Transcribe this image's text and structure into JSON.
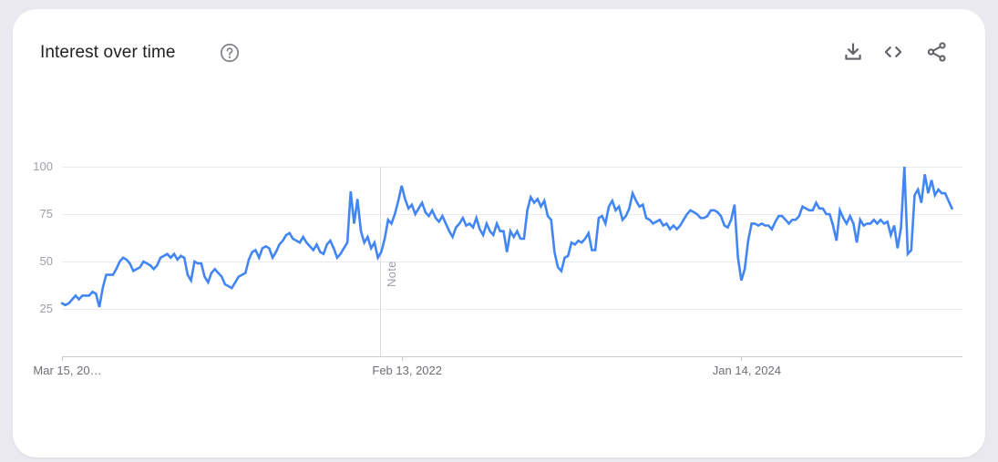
{
  "header": {
    "title": "Interest over time",
    "help_icon": "help-circle",
    "actions": [
      {
        "name": "download",
        "icon": "download-icon"
      },
      {
        "name": "embed",
        "icon": "embed-code-icon"
      },
      {
        "name": "share",
        "icon": "share-icon"
      }
    ]
  },
  "colors": {
    "line": "#4285f4",
    "grid": "#e8eaed",
    "axis": "#c9cbce",
    "icon": "#5f6368",
    "title_text": "#202124",
    "axis_label_text": "#9aa0a6",
    "card_background": "#ffffff",
    "page_background": "#eae9ef"
  },
  "chart_data": {
    "type": "line",
    "title": "Interest over time",
    "x_axis": {
      "tick_labels": [
        "Mar 15, 20…",
        "Feb 13, 2022",
        "Jan 14, 2024"
      ],
      "tick_weeks": [
        0,
        100,
        200
      ],
      "points_interval": "weekly"
    },
    "y_axis": {
      "tick_labels": [
        "100",
        "75",
        "50",
        "25"
      ],
      "tick_values": [
        100,
        75,
        50,
        25
      ],
      "range": [
        0,
        100
      ],
      "grid": true
    },
    "note_marker": {
      "label": "Note",
      "week": 93.6
    },
    "legend_position": "none",
    "series": [
      {
        "name": "interest",
        "color": "#4285f4",
        "values": [
          28,
          27,
          28,
          30,
          32,
          30,
          32,
          32,
          32,
          34,
          33,
          26,
          36,
          43,
          43,
          43,
          46,
          50,
          52,
          51,
          49,
          45,
          46,
          47,
          50,
          49,
          48,
          46,
          48,
          52,
          53,
          54,
          52,
          54,
          51,
          53,
          52,
          43,
          40,
          50,
          49,
          49,
          42,
          39,
          44,
          46,
          44,
          42,
          38,
          37,
          36,
          39,
          42,
          43,
          44,
          51,
          55,
          56,
          52,
          57,
          58,
          57,
          52,
          55,
          59,
          61,
          64,
          65,
          62,
          61,
          60,
          63,
          60,
          58,
          56,
          59,
          55,
          54,
          59,
          61,
          57,
          52,
          54,
          57,
          60,
          87,
          70,
          83,
          66,
          60,
          63,
          57,
          60,
          52,
          55,
          62,
          72,
          70,
          75,
          82,
          90,
          83,
          78,
          80,
          75,
          78,
          81,
          76,
          74,
          77,
          73,
          71,
          74,
          70,
          66,
          63,
          68,
          70,
          73,
          69,
          70,
          68,
          73,
          67,
          64,
          70,
          66,
          64,
          70,
          66,
          66,
          55,
          66,
          63,
          66,
          62,
          62,
          77,
          84,
          81,
          83,
          79,
          82,
          74,
          72,
          55,
          47,
          45,
          52,
          53,
          60,
          59,
          61,
          60,
          62,
          65,
          56,
          56,
          73,
          74,
          70,
          79,
          82,
          77,
          79,
          72,
          74,
          78,
          86,
          82,
          79,
          80,
          73,
          72,
          70,
          71,
          72,
          69,
          70,
          67,
          69,
          67,
          69,
          72,
          75,
          77,
          76,
          75,
          73,
          73,
          74,
          77,
          77,
          76,
          74,
          69,
          68,
          72,
          80,
          52,
          40,
          46,
          61,
          70,
          70,
          69,
          70,
          69,
          69,
          67,
          71,
          74,
          74,
          72,
          70,
          72,
          72,
          74,
          79,
          78,
          77,
          77,
          81,
          78,
          78,
          75,
          75,
          69,
          61,
          77,
          73,
          70,
          74,
          70,
          60,
          72,
          69,
          70,
          70,
          72,
          70,
          72,
          70,
          71,
          64,
          69,
          57,
          68,
          100,
          54,
          56,
          85,
          88,
          81,
          96,
          86,
          93,
          85,
          88,
          86,
          86,
          82,
          78
        ]
      }
    ]
  }
}
